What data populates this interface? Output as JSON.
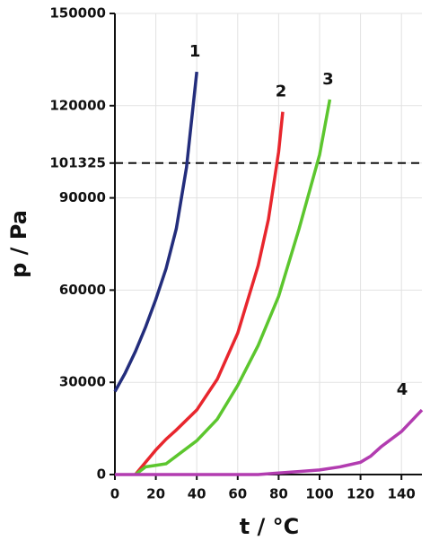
{
  "chart_data": {
    "type": "line",
    "xlabel": "t / °C",
    "ylabel": "p / Pa",
    "xlim": [
      0,
      150
    ],
    "xticks": [
      0,
      20,
      40,
      60,
      80,
      100,
      120,
      140
    ],
    "ylim": [
      0,
      150000
    ],
    "yticks": [
      0,
      30000,
      60000,
      90000,
      101325,
      120000,
      150000
    ],
    "reference_line": 101325,
    "grid": true,
    "series": [
      {
        "name": "1",
        "color": "#232d7c",
        "x": [
          0,
          5,
          10,
          15,
          20,
          25,
          30,
          35,
          40
        ],
        "values": [
          27000,
          33000,
          40000,
          48000,
          57000,
          67000,
          80000,
          100000,
          131000
        ]
      },
      {
        "name": "2",
        "color": "#e8262d",
        "x": [
          10,
          15,
          20,
          25,
          30,
          40,
          50,
          60,
          70,
          75,
          80,
          82
        ],
        "values": [
          0,
          4000,
          8000,
          11500,
          14500,
          21000,
          31000,
          46000,
          68000,
          83000,
          105000,
          118000
        ]
      },
      {
        "name": "3",
        "color": "#5cc62e",
        "x": [
          10,
          15,
          20,
          25,
          30,
          40,
          50,
          60,
          70,
          80,
          90,
          100,
          105
        ],
        "values": [
          0,
          2500,
          3000,
          3500,
          6000,
          11000,
          18000,
          29000,
          42000,
          58000,
          80000,
          104000,
          122000
        ]
      },
      {
        "name": "4",
        "color": "#b23cb0",
        "x": [
          0,
          70,
          80,
          90,
          100,
          110,
          120,
          125,
          130,
          140,
          150
        ],
        "values": [
          0,
          0,
          500,
          1000,
          1500,
          2500,
          4000,
          6000,
          9000,
          14000,
          21000
        ]
      }
    ]
  }
}
